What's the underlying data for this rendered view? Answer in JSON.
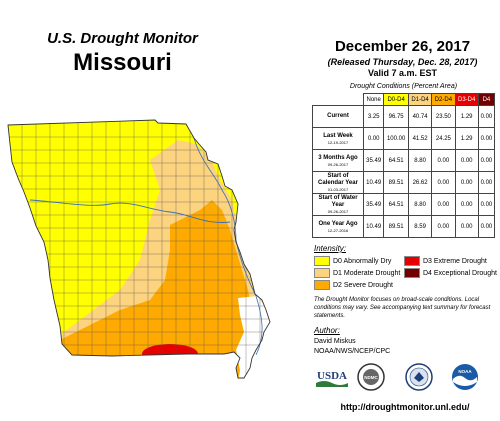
{
  "header": {
    "org_title": "U.S. Drought Monitor",
    "state": "Missouri",
    "date": "December 26, 2017",
    "released": "(Released Thursday, Dec. 28, 2017)",
    "valid": "Valid 7 a.m. EST"
  },
  "table": {
    "caption": "Drought Conditions (Percent Area)",
    "columns": [
      "None",
      "D0-D4",
      "D1-D4",
      "D2-D4",
      "D3-D4",
      "D4"
    ],
    "column_colors": [
      "#ffffff",
      "#ffff00",
      "#fcd37f",
      "#ffaa00",
      "#e60000",
      "#730000"
    ],
    "rows": [
      {
        "label": "Current",
        "date": "",
        "values": [
          "3.25",
          "96.75",
          "40.74",
          "23.50",
          "1.29",
          "0.00"
        ]
      },
      {
        "label": "Last Week",
        "date": "12-19-2017",
        "values": [
          "0.00",
          "100.00",
          "41.52",
          "24.25",
          "1.29",
          "0.00"
        ]
      },
      {
        "label": "3 Months Ago",
        "date": "09-26-2017",
        "values": [
          "35.49",
          "64.51",
          "8.80",
          "0.00",
          "0.00",
          "0.00"
        ]
      },
      {
        "label": "Start of Calendar Year",
        "date": "01-03-2017",
        "values": [
          "10.49",
          "89.51",
          "26.62",
          "0.00",
          "0.00",
          "0.00"
        ]
      },
      {
        "label": "Start of Water Year",
        "date": "09-26-2017",
        "values": [
          "35.49",
          "64.51",
          "8.80",
          "0.00",
          "0.00",
          "0.00"
        ]
      },
      {
        "label": "One Year Ago",
        "date": "12-27-2016",
        "values": [
          "10.49",
          "89.51",
          "8.59",
          "0.00",
          "0.00",
          "0.00"
        ]
      }
    ]
  },
  "legend": {
    "title": "Intensity:",
    "items": [
      {
        "label": "D0 Abnormally Dry",
        "color": "#ffff00"
      },
      {
        "label": "D1 Moderate Drought",
        "color": "#fcd37f"
      },
      {
        "label": "D2 Severe Drought",
        "color": "#ffaa00"
      },
      {
        "label": "D3 Extreme Drought",
        "color": "#e60000"
      },
      {
        "label": "D4 Exceptional Drought",
        "color": "#730000"
      }
    ]
  },
  "note": "The Drought Monitor focuses on broad-scale conditions. Local conditions may vary. See accompanying text summary for forecast statements.",
  "author": {
    "title": "Author:",
    "name": "David Miskus",
    "org": "NOAA/NWS/NCEP/CPC"
  },
  "logos": {
    "usda": "USDA",
    "ndmc": "NDMC",
    "noaa": "NOAA"
  },
  "url": "http://droughtmonitor.unl.edu/"
}
